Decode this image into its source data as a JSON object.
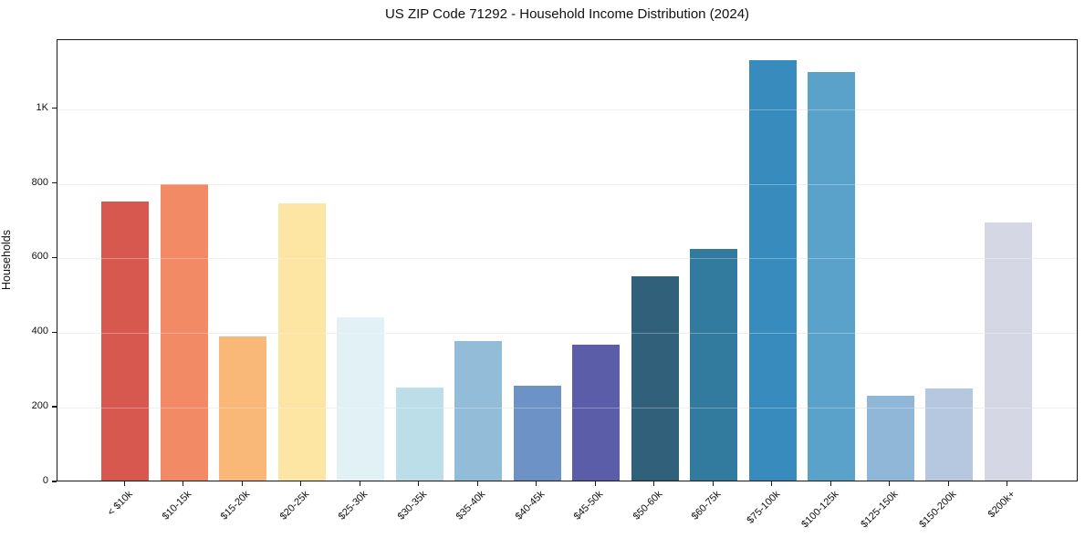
{
  "chart_data": {
    "type": "bar",
    "title": "US ZIP Code 71292 - Household Income Distribution (2024)",
    "xlabel": "",
    "ylabel": "Households",
    "categories": [
      "< $10k",
      "$10-15k",
      "$15-20k",
      "$20-25k",
      "$25-30k",
      "$30-35k",
      "$35-40k",
      "$40-45k",
      "$45-50k",
      "$50-60k",
      "$60-75k",
      "$75-100k",
      "$100-125k",
      "$125-150k",
      "$150-200k",
      "$200k+"
    ],
    "values": [
      747,
      793,
      387,
      744,
      437,
      250,
      374,
      253,
      365,
      548,
      621,
      1126,
      1095,
      227,
      246,
      692
    ],
    "bar_colors": [
      "#d6584f",
      "#f18a65",
      "#fab878",
      "#fde5a3",
      "#e2f1f6",
      "#bbdee9",
      "#93bcd8",
      "#6d93c6",
      "#5c5da9",
      "#30607a",
      "#337a9f",
      "#388bbd",
      "#5aa2c9",
      "#90b7d8",
      "#b6c8df",
      "#d5d8e4"
    ],
    "ylim": [
      0,
      1185
    ],
    "yticks": [
      {
        "value": 0,
        "label": "0"
      },
      {
        "value": 200,
        "label": "200"
      },
      {
        "value": 400,
        "label": "400"
      },
      {
        "value": 600,
        "label": "600"
      },
      {
        "value": 800,
        "label": "800"
      },
      {
        "value": 1000,
        "label": "1K"
      }
    ],
    "grid": "horizontal",
    "legend_position": "none",
    "background_color": "#ffffff",
    "spine_color": "#1a1a1a",
    "grid_color": "#e8e8e8",
    "text_color": "#111111"
  }
}
